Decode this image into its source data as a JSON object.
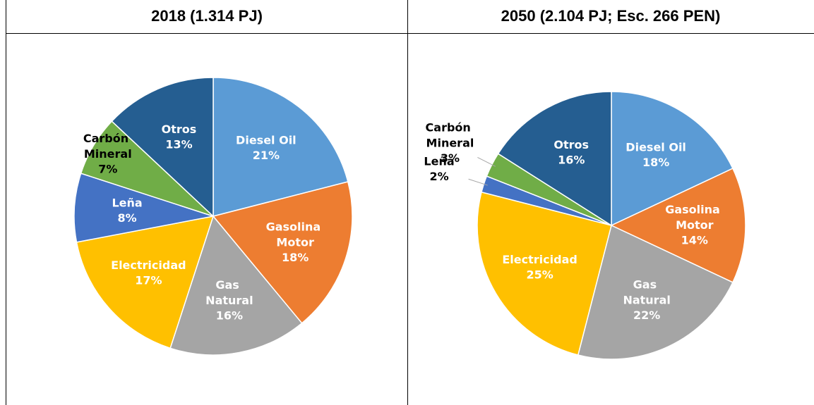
{
  "chart_data": [
    {
      "type": "pie",
      "title": "2018 (1.314 PJ)",
      "categories": [
        "Diesel Oil",
        "Gasolina Motor",
        "Gas Natural",
        "Electricidad",
        "Leña",
        "Carbón Mineral",
        "Otros"
      ],
      "values": [
        21,
        18,
        16,
        17,
        8,
        7,
        13
      ],
      "value_labels": [
        "21%",
        "18%",
        "16%",
        "17%",
        "8%",
        "7%",
        "13%"
      ],
      "colors": [
        "#5b9bd5",
        "#ed7d31",
        "#a5a5a5",
        "#ffc000",
        "#4472c4",
        "#70ad47",
        "#255e91"
      ],
      "label_colors": [
        "#ffffff",
        "#ffffff",
        "#ffffff",
        "#ffffff",
        "#ffffff",
        "#000000",
        "#ffffff"
      ]
    },
    {
      "type": "pie",
      "title": "2050 (2.104 PJ; Esc. 266 PEN)",
      "categories": [
        "Diesel Oil",
        "Gasolina Motor",
        "Gas Natural",
        "Electricidad",
        "Leña",
        "Carbón Mineral",
        "Otros"
      ],
      "values": [
        18,
        14,
        22,
        25,
        2,
        3,
        16
      ],
      "value_labels": [
        "18%",
        "14%",
        "22%",
        "25%",
        "2%",
        "3%",
        "16%"
      ],
      "colors": [
        "#5b9bd5",
        "#ed7d31",
        "#a5a5a5",
        "#ffc000",
        "#4472c4",
        "#70ad47",
        "#255e91"
      ],
      "label_colors": [
        "#ffffff",
        "#ffffff",
        "#ffffff",
        "#ffffff",
        "#000000",
        "#000000",
        "#ffffff"
      ]
    }
  ]
}
